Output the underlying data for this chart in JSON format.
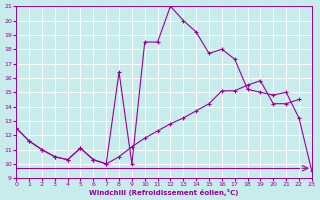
{
  "bg_color": "#c8ecec",
  "line_color": "#990099",
  "grid_color": "#ffffff",
  "xlabel": "Windchill (Refroidissement éolien,°C)",
  "xlim": [
    0,
    23
  ],
  "ylim": [
    9,
    21
  ],
  "xticks": [
    0,
    1,
    2,
    3,
    4,
    5,
    6,
    7,
    8,
    9,
    10,
    11,
    12,
    13,
    14,
    15,
    16,
    17,
    18,
    19,
    20,
    21,
    22,
    23
  ],
  "yticks": [
    9,
    10,
    11,
    12,
    13,
    14,
    15,
    16,
    17,
    18,
    19,
    20,
    21
  ],
  "line_peak_x": [
    0,
    1,
    2,
    3,
    4,
    5,
    6,
    7,
    8,
    9,
    10,
    11,
    12,
    13,
    14,
    15,
    16,
    17,
    18,
    19,
    20,
    21,
    22,
    23
  ],
  "line_peak_y": [
    12.5,
    11.6,
    11.0,
    10.5,
    10.3,
    11.1,
    10.3,
    10.0,
    16.4,
    10.0,
    18.5,
    18.5,
    21.0,
    20.0,
    19.2,
    17.7,
    18.0,
    17.3,
    15.2,
    15.0,
    14.8,
    15.0,
    13.2,
    9.5
  ],
  "line_diag_x": [
    0,
    1,
    2,
    3,
    4,
    5,
    6,
    7,
    8,
    9,
    10,
    11,
    12,
    13,
    14,
    15,
    16,
    17,
    18,
    19,
    20,
    21,
    22
  ],
  "line_diag_y": [
    12.5,
    11.6,
    11.0,
    10.5,
    10.3,
    11.1,
    10.3,
    10.0,
    10.5,
    11.2,
    11.8,
    12.3,
    12.8,
    13.2,
    13.7,
    14.2,
    15.1,
    15.1,
    15.5,
    15.8,
    14.2,
    14.2,
    14.5
  ],
  "line_flat_x": [
    0,
    1,
    2,
    3,
    4,
    5,
    6,
    7,
    8,
    9,
    10,
    11,
    12,
    13,
    14,
    15,
    16,
    17,
    18,
    19,
    20,
    21,
    22,
    23
  ],
  "line_flat_y": [
    9.7,
    9.7,
    9.7,
    9.7,
    9.7,
    9.7,
    9.7,
    9.7,
    9.7,
    9.7,
    9.7,
    9.7,
    9.7,
    9.7,
    9.7,
    9.7,
    9.7,
    9.7,
    9.7,
    9.7,
    9.7,
    9.7,
    9.7,
    9.7
  ]
}
